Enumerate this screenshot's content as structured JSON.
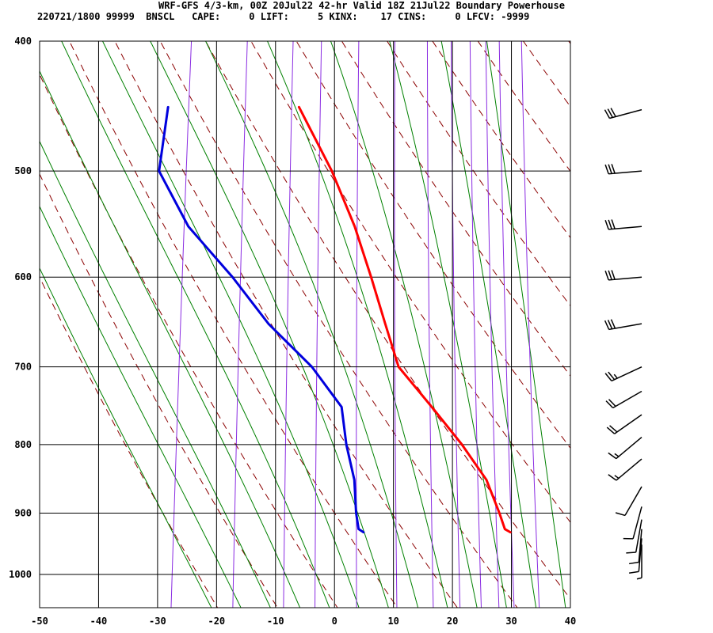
{
  "header": {
    "title": "WRF-GFS 4/3-km, 00Z 20Jul22 42-hr Valid 18Z 21Jul22 Boundary Powerhouse",
    "info": "220721/1800 99999  BNSCL   CAPE:     0 LIFT:     5 KINX:    17 CINS:     0 LFCV: -9999"
  },
  "chart_data": {
    "type": "line",
    "subtype": "skew-t log-p sounding",
    "x_ticks": [
      "-50",
      "-40",
      "-30",
      "-20",
      "-10",
      "0",
      "10",
      "20",
      "30",
      "40"
    ],
    "y_ticks": [
      "400",
      "500",
      "600",
      "700",
      "800",
      "900",
      "1000"
    ],
    "xlim": [
      -50,
      40
    ],
    "ylim": [
      1040,
      400
    ],
    "y_scale": "log-pressure",
    "grid": true,
    "colors": {
      "temperature": "#ff0000",
      "dewpoint": "#0000dd",
      "dry_adiabat": "#8b0000",
      "moist_adiabat": "#008000",
      "mixing_ratio": "#8a2be2",
      "grid": "#000000",
      "wind_barb": "#000000"
    },
    "series": [
      {
        "key": "temperature",
        "pressure": [
          448,
          500,
          550,
          600,
          650,
          700,
          750,
          800,
          850,
          900,
          925,
          930
        ],
        "values": [
          -17.2,
          -10.1,
          -4.9,
          -0.9,
          2.6,
          5.9,
          12.5,
          18.5,
          23.5,
          26.5,
          27.8,
          28.8
        ]
      },
      {
        "key": "dewpoint",
        "pressure": [
          448,
          500,
          550,
          600,
          650,
          700,
          750,
          800,
          850,
          900,
          925,
          930
        ],
        "values": [
          -39.4,
          -39.4,
          -33.1,
          -24.4,
          -17.2,
          -8.8,
          -2.8,
          -1.1,
          1.1,
          2.2,
          3.0,
          3.9
        ]
      }
    ],
    "wind_barbs": [
      {
        "pressure": 450,
        "direction": 255,
        "speed": 30
      },
      {
        "pressure": 500,
        "direction": 265,
        "speed": 30
      },
      {
        "pressure": 550,
        "direction": 265,
        "speed": 30
      },
      {
        "pressure": 600,
        "direction": 265,
        "speed": 30
      },
      {
        "pressure": 650,
        "direction": 260,
        "speed": 30
      },
      {
        "pressure": 700,
        "direction": 245,
        "speed": 25
      },
      {
        "pressure": 730,
        "direction": 240,
        "speed": 20
      },
      {
        "pressure": 760,
        "direction": 235,
        "speed": 20
      },
      {
        "pressure": 790,
        "direction": 230,
        "speed": 15
      },
      {
        "pressure": 820,
        "direction": 230,
        "speed": 15
      },
      {
        "pressure": 860,
        "direction": 210,
        "speed": 10
      },
      {
        "pressure": 890,
        "direction": 195,
        "speed": 10
      },
      {
        "pressure": 910,
        "direction": 190,
        "speed": 10
      },
      {
        "pressure": 925,
        "direction": 185,
        "speed": 10
      },
      {
        "pressure": 940,
        "direction": 185,
        "speed": 10
      },
      {
        "pressure": 950,
        "direction": 180,
        "speed": 5
      }
    ]
  }
}
